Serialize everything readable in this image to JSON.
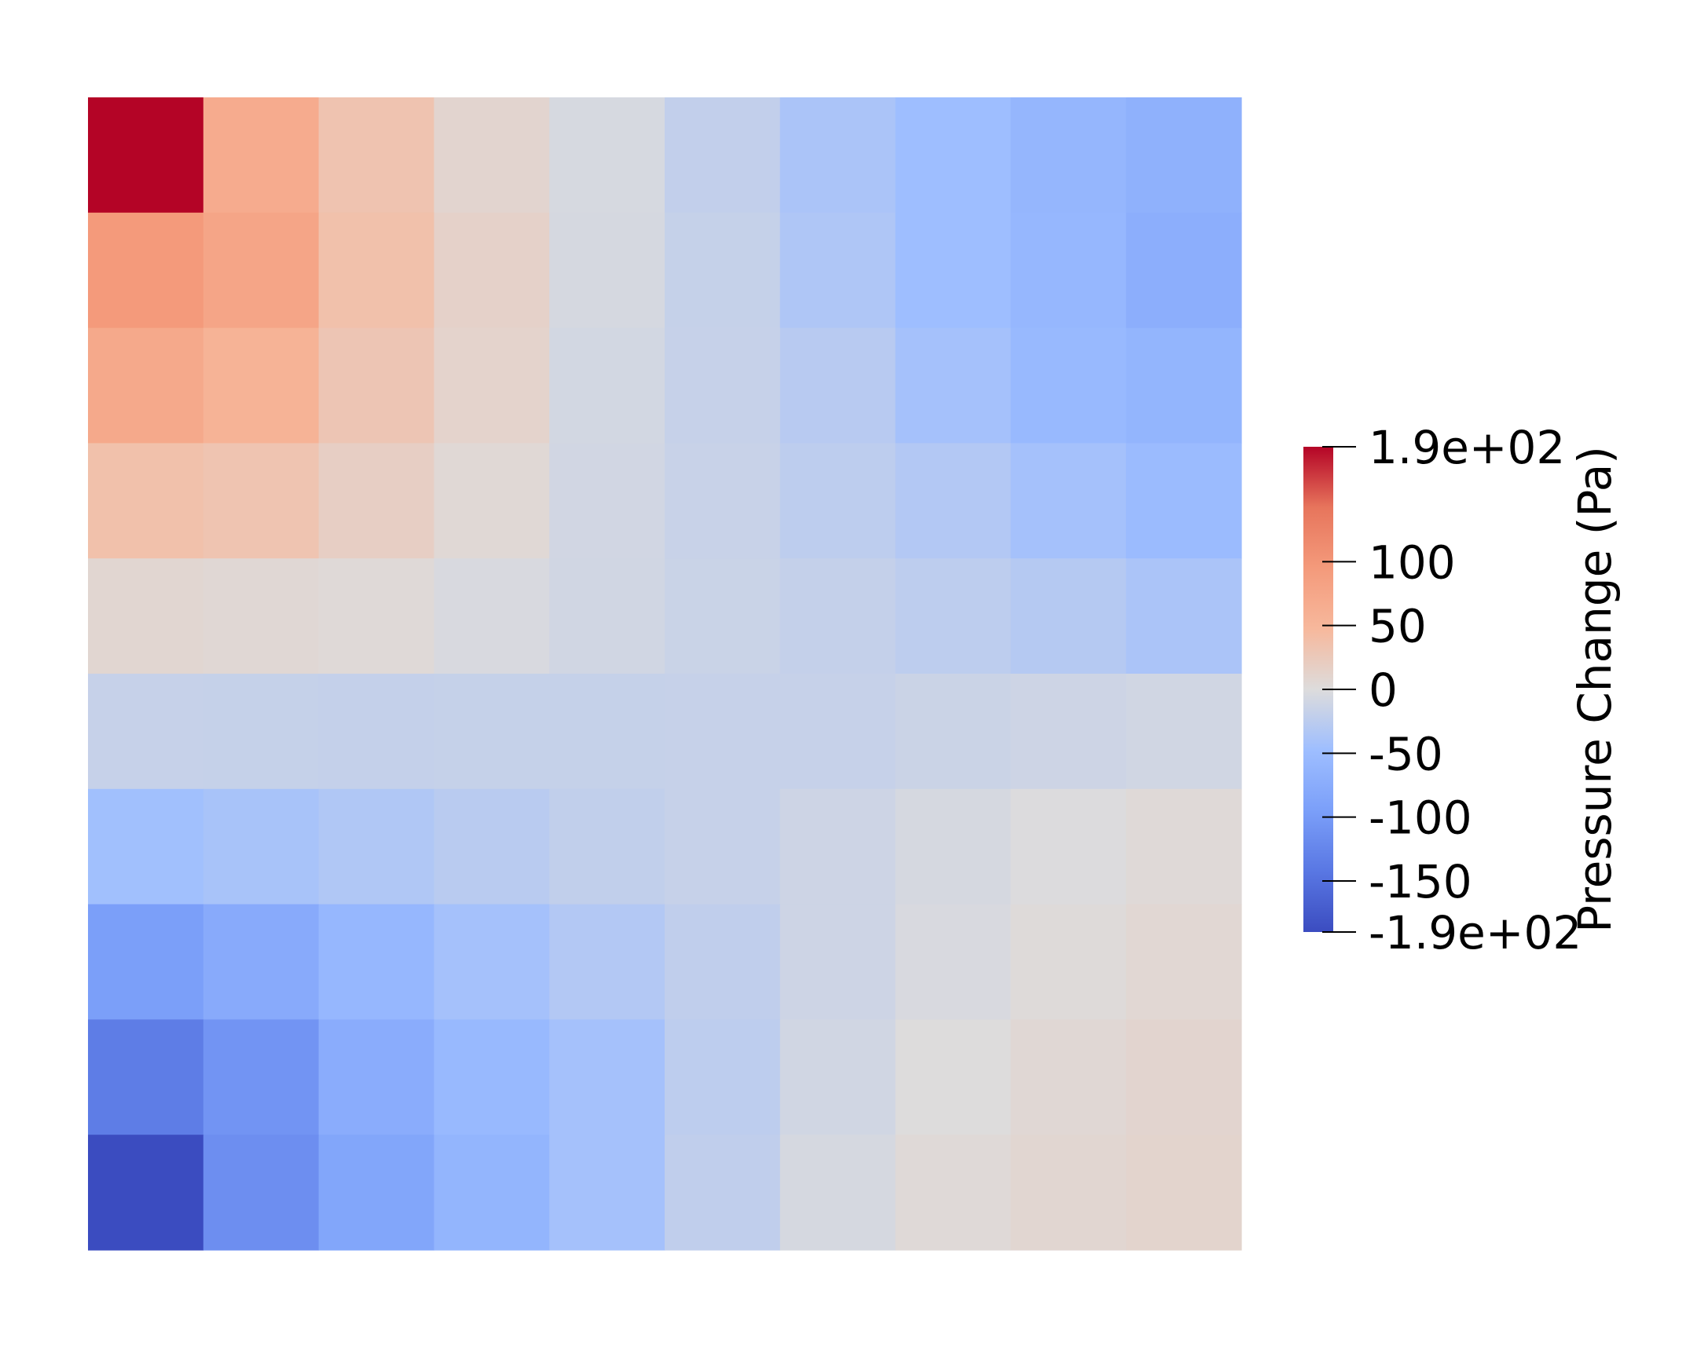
{
  "chart_data": {
    "type": "heatmap",
    "rows": 10,
    "cols": 10,
    "values": [
      [
        190,
        68,
        33,
        10,
        -5,
        -20,
        -38,
        -48,
        -60,
        -68
      ],
      [
        95,
        78,
        36,
        14,
        -6,
        -18,
        -35,
        -48,
        -58,
        -72
      ],
      [
        72,
        56,
        30,
        12,
        -8,
        -17,
        -28,
        -42,
        -55,
        -62
      ],
      [
        36,
        32,
        18,
        5,
        -9,
        -16,
        -24,
        -32,
        -42,
        -52
      ],
      [
        8,
        6,
        4,
        -4,
        -10,
        -15,
        -19,
        -24,
        -30,
        -38
      ],
      [
        -17,
        -18,
        -19,
        -18,
        -18,
        -17,
        -17,
        -14,
        -12,
        -10
      ],
      [
        -45,
        -40,
        -34,
        -27,
        -21,
        -17,
        -12,
        -6,
        -1,
        4
      ],
      [
        -95,
        -78,
        -58,
        -42,
        -32,
        -22,
        -12,
        -4,
        2,
        7
      ],
      [
        -135,
        -108,
        -75,
        -55,
        -42,
        -24,
        -10,
        0,
        6,
        10
      ],
      [
        -190,
        -115,
        -85,
        -62,
        -42,
        -22,
        -6,
        4,
        8,
        11
      ]
    ],
    "colormap": "coolwarm",
    "range": [
      -190,
      190
    ],
    "colorbar": {
      "title": "Pressure Change (Pa)",
      "ticks": [
        {
          "value": 190,
          "label": "1.9e+02"
        },
        {
          "value": 100,
          "label": "100"
        },
        {
          "value": 50,
          "label": "50"
        },
        {
          "value": 0,
          "label": "0"
        },
        {
          "value": -50,
          "label": "-50"
        },
        {
          "value": -100,
          "label": "-100"
        },
        {
          "value": -150,
          "label": "-150"
        },
        {
          "value": -190,
          "label": "-1.9e+02"
        }
      ]
    }
  }
}
